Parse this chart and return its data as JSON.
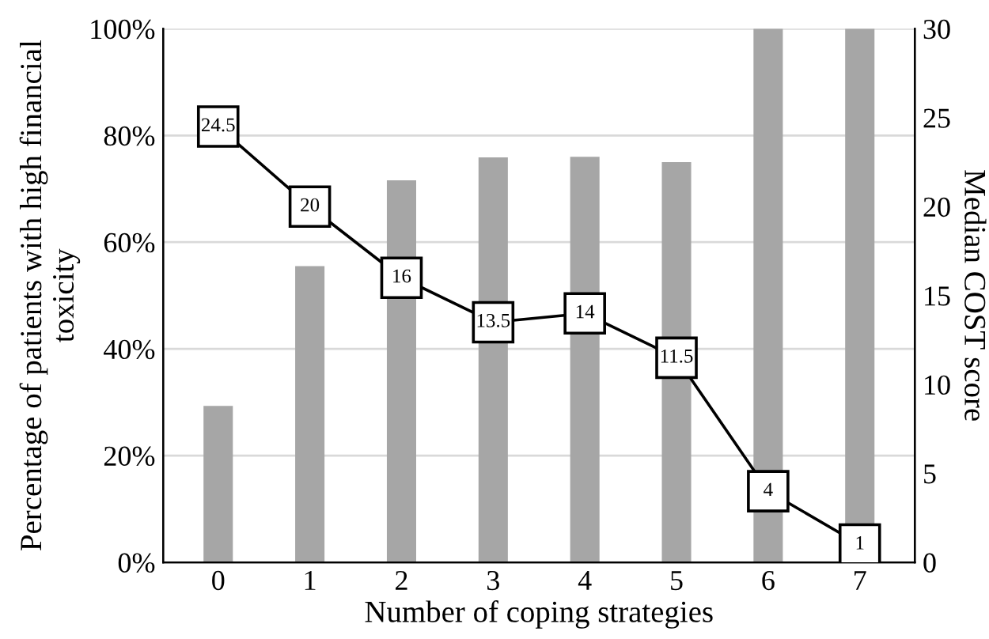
{
  "chart_data": {
    "type": "bar",
    "xlabel": "Number of coping strategies",
    "ylabel": "Percentage of patients with high financial\ntoxicity",
    "y2label": "Median COST score",
    "categories": [
      "0",
      "1",
      "2",
      "3",
      "4",
      "5",
      "6",
      "7"
    ],
    "series": [
      {
        "color": "#a6a6a6",
        "values": [
          29.3,
          55.5,
          71.6,
          75.9,
          76,
          75,
          100,
          100
        ]
      },
      {
        "type": "line",
        "axis": "y2",
        "color": "#000000",
        "marker": "square",
        "data_labels": true,
        "values": [
          24.5,
          20,
          16,
          13.5,
          14,
          11.5,
          4,
          1
        ]
      }
    ],
    "ylim": [
      0,
      100
    ],
    "yticks": [
      {
        "value": 0,
        "label": "0%"
      },
      {
        "value": 20,
        "label": "20%"
      },
      {
        "value": 40,
        "label": "40%"
      },
      {
        "value": 60,
        "label": "60%"
      },
      {
        "value": 80,
        "label": "80%"
      },
      {
        "value": 100,
        "label": "100%"
      }
    ],
    "y2lim": [
      0,
      30
    ],
    "y2ticks": [
      0,
      5,
      10,
      15,
      20,
      25,
      30
    ],
    "grid": "y"
  }
}
